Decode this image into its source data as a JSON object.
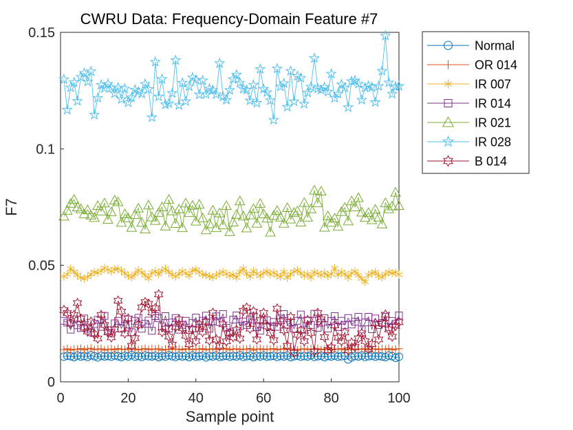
{
  "chart_data": {
    "type": "line",
    "title": "CWRU Data: Frequency-Domain Feature #7",
    "xlabel": "Sample point",
    "ylabel": "F7",
    "xlim": [
      0,
      100
    ],
    "ylim": [
      0,
      0.15
    ],
    "xticks": [
      0,
      20,
      40,
      60,
      80,
      100
    ],
    "xtick_labels": [
      "0",
      "20",
      "40",
      "60",
      "80",
      "100"
    ],
    "yticks": [
      0,
      0.05,
      0.1,
      0.15
    ],
    "ytick_labels": [
      "0",
      "0.05",
      "0.1",
      "0.15"
    ],
    "grid": false,
    "legend_position": "top-right (outside)",
    "series": [
      {
        "name": "Normal",
        "color": "#0072BD",
        "marker": "circle",
        "x_start": 1,
        "x_step": 1,
        "y": [
          0.0108,
          0.0112,
          0.011,
          0.0106,
          0.0113,
          0.0109,
          0.0111,
          0.0107,
          0.0114,
          0.011,
          0.0105,
          0.0112,
          0.0109,
          0.0111,
          0.0108,
          0.0113,
          0.011,
          0.0106,
          0.0112,
          0.0109,
          0.0115,
          0.0108,
          0.0111,
          0.0107,
          0.0113,
          0.011,
          0.0109,
          0.0112,
          0.0106,
          0.0111,
          0.0108,
          0.0114,
          0.011,
          0.0107,
          0.0112,
          0.0109,
          0.0111,
          0.0106,
          0.0113,
          0.0108,
          0.011,
          0.0112,
          0.0105,
          0.0111,
          0.0109,
          0.0113,
          0.0107,
          0.011,
          0.0112,
          0.0108,
          0.0111,
          0.0109,
          0.0114,
          0.0107,
          0.011,
          0.0112,
          0.0106,
          0.0111,
          0.0109,
          0.0113,
          0.0108,
          0.011,
          0.0112,
          0.0107,
          0.0111,
          0.0109,
          0.0113,
          0.0106,
          0.011,
          0.0112,
          0.0108,
          0.0111,
          0.0109,
          0.0114,
          0.0107,
          0.011,
          0.0112,
          0.0106,
          0.0111,
          0.0109,
          0.0113,
          0.0108,
          0.011,
          0.0112,
          0.0096,
          0.0105,
          0.0111,
          0.0109,
          0.0113,
          0.0107,
          0.011,
          0.0112,
          0.0108,
          0.0111,
          0.0109,
          0.0106,
          0.0113,
          0.011,
          0.0103,
          0.0108
        ]
      },
      {
        "name": "OR 014",
        "color": "#D95319",
        "marker": "plus",
        "x_start": 1,
        "x_step": 1,
        "y": [
          0.0138,
          0.0142,
          0.0136,
          0.014,
          0.0139,
          0.0143,
          0.0137,
          0.0141,
          0.0144,
          0.0138,
          0.014,
          0.0142,
          0.0136,
          0.0139,
          0.0141,
          0.0137,
          0.0143,
          0.014,
          0.0138,
          0.0142,
          0.0139,
          0.0141,
          0.0137,
          0.014,
          0.0143,
          0.0138,
          0.0141,
          0.0139,
          0.0142,
          0.0136,
          0.014,
          0.0138,
          0.0143,
          0.0139,
          0.0141,
          0.0137,
          0.0142,
          0.014,
          0.0138,
          0.0141,
          0.0139,
          0.0143,
          0.0137,
          0.014,
          0.0142,
          0.0138,
          0.0141,
          0.0139,
          0.0144,
          0.0137,
          0.014,
          0.0142,
          0.0138,
          0.0141,
          0.0139,
          0.0143,
          0.0136,
          0.014,
          0.0142,
          0.0138,
          0.0141,
          0.0139,
          0.0143,
          0.0137,
          0.014,
          0.0142,
          0.0138,
          0.0141,
          0.0139,
          0.0136,
          0.014,
          0.0142,
          0.0138,
          0.0141,
          0.0139,
          0.0143,
          0.0137,
          0.014,
          0.0142,
          0.0138,
          0.0141,
          0.0139,
          0.0143,
          0.0137,
          0.014,
          0.0142,
          0.0138,
          0.0141,
          0.0139,
          0.0143,
          0.0137,
          0.014,
          0.0142,
          0.0138,
          0.0141,
          0.0139,
          0.0143,
          0.0137,
          0.014,
          0.0142
        ]
      },
      {
        "name": "IR 007",
        "color": "#EDB120",
        "marker": "asterisk",
        "x_start": 1,
        "x_step": 1,
        "y": [
          0.0452,
          0.0461,
          0.0486,
          0.0472,
          0.0458,
          0.0447,
          0.0443,
          0.045,
          0.0462,
          0.0471,
          0.0468,
          0.0476,
          0.0489,
          0.0481,
          0.0474,
          0.0483,
          0.0485,
          0.0477,
          0.0466,
          0.0455,
          0.0448,
          0.0463,
          0.0479,
          0.047,
          0.0457,
          0.0445,
          0.0468,
          0.0474,
          0.0462,
          0.0478,
          0.0486,
          0.0471,
          0.0459,
          0.0452,
          0.0463,
          0.0475,
          0.0467,
          0.0456,
          0.0478,
          0.0482,
          0.047,
          0.0461,
          0.0459,
          0.0453,
          0.0449,
          0.0458,
          0.0465,
          0.0472,
          0.0463,
          0.0455,
          0.046,
          0.0448,
          0.0471,
          0.0486,
          0.0465,
          0.0452,
          0.0475,
          0.0464,
          0.0455,
          0.0468,
          0.0474,
          0.0461,
          0.0469,
          0.0458,
          0.0451,
          0.0472,
          0.0447,
          0.0462,
          0.0473,
          0.0479,
          0.0466,
          0.0455,
          0.0463,
          0.0448,
          0.0471,
          0.0465,
          0.0458,
          0.0468,
          0.0455,
          0.0462,
          0.0488,
          0.0459,
          0.0471,
          0.0463,
          0.0448,
          0.0467,
          0.0474,
          0.0458,
          0.0443,
          0.0429,
          0.0459,
          0.0466,
          0.0471,
          0.0455,
          0.0448,
          0.0463,
          0.0471,
          0.0466,
          0.047,
          0.046
        ]
      },
      {
        "name": "IR 014",
        "color": "#7E2F8E",
        "marker": "square",
        "x_start": 1,
        "x_step": 1,
        "y": [
          0.0262,
          0.0254,
          0.0224,
          0.0268,
          0.0243,
          0.0231,
          0.0272,
          0.0228,
          0.0213,
          0.0248,
          0.0266,
          0.0236,
          0.0283,
          0.0221,
          0.0209,
          0.0251,
          0.0262,
          0.0229,
          0.0269,
          0.0247,
          0.0213,
          0.0262,
          0.0275,
          0.0228,
          0.0249,
          0.0263,
          0.0219,
          0.0282,
          0.0273,
          0.0238,
          0.0282,
          0.0229,
          0.0255,
          0.0274,
          0.0224,
          0.0245,
          0.0262,
          0.0223,
          0.0253,
          0.0276,
          0.0231,
          0.0262,
          0.0284,
          0.0228,
          0.026,
          0.0281,
          0.0257,
          0.0291,
          0.0232,
          0.0212,
          0.0267,
          0.0285,
          0.0239,
          0.0259,
          0.0244,
          0.0268,
          0.0281,
          0.0235,
          0.0219,
          0.0265,
          0.0264,
          0.0238,
          0.0257,
          0.0236,
          0.0272,
          0.0291,
          0.0245,
          0.0255,
          0.0228,
          0.0262,
          0.0289,
          0.0224,
          0.0263,
          0.0244,
          0.0292,
          0.0232,
          0.0254,
          0.0273,
          0.0229,
          0.0261,
          0.0282,
          0.0235,
          0.0262,
          0.0244,
          0.0274,
          0.0246,
          0.0258,
          0.0279,
          0.0225,
          0.0255,
          0.0279,
          0.0226,
          0.0272,
          0.0244,
          0.0253,
          0.0279,
          0.0235,
          0.0261,
          0.0249,
          0.0285
        ]
      },
      {
        "name": "IR 021",
        "color": "#77AC30",
        "marker": "triangle",
        "x_start": 1,
        "x_step": 1,
        "y": [
          0.071,
          0.0735,
          0.0765,
          0.0782,
          0.075,
          0.0742,
          0.072,
          0.0738,
          0.0715,
          0.0705,
          0.0756,
          0.0732,
          0.0767,
          0.0697,
          0.0729,
          0.0779,
          0.0772,
          0.0684,
          0.0721,
          0.0703,
          0.0662,
          0.0717,
          0.0745,
          0.0684,
          0.0655,
          0.0758,
          0.0707,
          0.0692,
          0.0726,
          0.075,
          0.0668,
          0.0782,
          0.0733,
          0.0679,
          0.0741,
          0.0661,
          0.0767,
          0.0726,
          0.0757,
          0.0689,
          0.0761,
          0.0703,
          0.0652,
          0.0678,
          0.0736,
          0.0661,
          0.0724,
          0.0673,
          0.0756,
          0.0644,
          0.0685,
          0.0718,
          0.0776,
          0.0711,
          0.066,
          0.0716,
          0.0743,
          0.068,
          0.0765,
          0.072,
          0.0702,
          0.0642,
          0.0714,
          0.0735,
          0.0706,
          0.068,
          0.0747,
          0.0698,
          0.0726,
          0.0733,
          0.0685,
          0.0769,
          0.0706,
          0.0742,
          0.0822,
          0.0768,
          0.0818,
          0.0663,
          0.0712,
          0.0684,
          0.0702,
          0.0667,
          0.073,
          0.0748,
          0.069,
          0.0776,
          0.075,
          0.079,
          0.0728,
          0.0705,
          0.0726,
          0.0695,
          0.074,
          0.0706,
          0.0677,
          0.0768,
          0.0742,
          0.0754,
          0.0813,
          0.0756
        ]
      },
      {
        "name": "IR 028",
        "color": "#4DBEEE",
        "marker": "pentagram",
        "x_start": 1,
        "x_step": 1,
        "y": [
          0.1298,
          0.1167,
          0.1263,
          0.1285,
          0.1205,
          0.1308,
          0.1325,
          0.1288,
          0.1332,
          0.1146,
          0.1218,
          0.1274,
          0.126,
          0.1278,
          0.1262,
          0.1238,
          0.1263,
          0.1213,
          0.1258,
          0.1199,
          0.122,
          0.1253,
          0.1246,
          0.1236,
          0.1278,
          0.1256,
          0.1135,
          0.1373,
          0.1224,
          0.1299,
          0.119,
          0.1195,
          0.1239,
          0.138,
          0.1187,
          0.1283,
          0.1204,
          0.1268,
          0.1306,
          0.1296,
          0.1233,
          0.1293,
          0.1234,
          0.1258,
          0.1252,
          0.1234,
          0.1367,
          0.1224,
          0.121,
          0.1252,
          0.1299,
          0.1318,
          0.1283,
          0.1257,
          0.1253,
          0.1207,
          0.1274,
          0.1197,
          0.1342,
          0.1257,
          0.1242,
          0.1208,
          0.1124,
          0.1344,
          0.1267,
          0.1281,
          0.118,
          0.1334,
          0.1203,
          0.1312,
          0.1304,
          0.1193,
          0.1241,
          0.1266,
          0.1389,
          0.1258,
          0.1253,
          0.1265,
          0.1245,
          0.1322,
          0.1218,
          0.1236,
          0.1276,
          0.1262,
          0.1178,
          0.129,
          0.1293,
          0.1279,
          0.121,
          0.1262,
          0.1271,
          0.1264,
          0.12,
          0.1269,
          0.1334,
          0.1485,
          0.1284,
          0.1236,
          0.1267,
          0.1269
        ]
      },
      {
        "name": "B 014",
        "color": "#A2142F",
        "marker": "hexagram",
        "x_start": 1,
        "x_step": 1,
        "y": [
          0.0308,
          0.0295,
          0.0252,
          0.0287,
          0.0338,
          0.0271,
          0.0232,
          0.0216,
          0.0258,
          0.0205,
          0.0186,
          0.0287,
          0.0244,
          0.0212,
          0.0191,
          0.0225,
          0.0348,
          0.0302,
          0.0208,
          0.0272,
          0.0155,
          0.0188,
          0.0245,
          0.032,
          0.0342,
          0.0335,
          0.0298,
          0.0316,
          0.0375,
          0.0214,
          0.0228,
          0.0194,
          0.016,
          0.0236,
          0.0268,
          0.023,
          0.0198,
          0.0162,
          0.0225,
          0.0175,
          0.0247,
          0.0214,
          0.0258,
          0.0178,
          0.0296,
          0.0182,
          0.0155,
          0.0247,
          0.0174,
          0.021,
          0.0192,
          0.0223,
          0.0186,
          0.0305,
          0.0318,
          0.0228,
          0.0302,
          0.0182,
          0.0265,
          0.0296,
          0.0238,
          0.021,
          0.0179,
          0.0314,
          0.026,
          0.0221,
          0.0155,
          0.0278,
          0.0125,
          0.0202,
          0.0221,
          0.0175,
          0.0265,
          0.021,
          0.013,
          0.0296,
          0.0268,
          0.0192,
          0.0136,
          0.0148,
          0.0242,
          0.019,
          0.0175,
          0.0212,
          0.0135,
          0.0168,
          0.015,
          0.0187,
          0.0208,
          0.0175,
          0.0141,
          0.0162,
          0.0252,
          0.0182,
          0.0251,
          0.0288,
          0.0225,
          0.0194,
          0.024,
          0.0256
        ]
      }
    ]
  }
}
